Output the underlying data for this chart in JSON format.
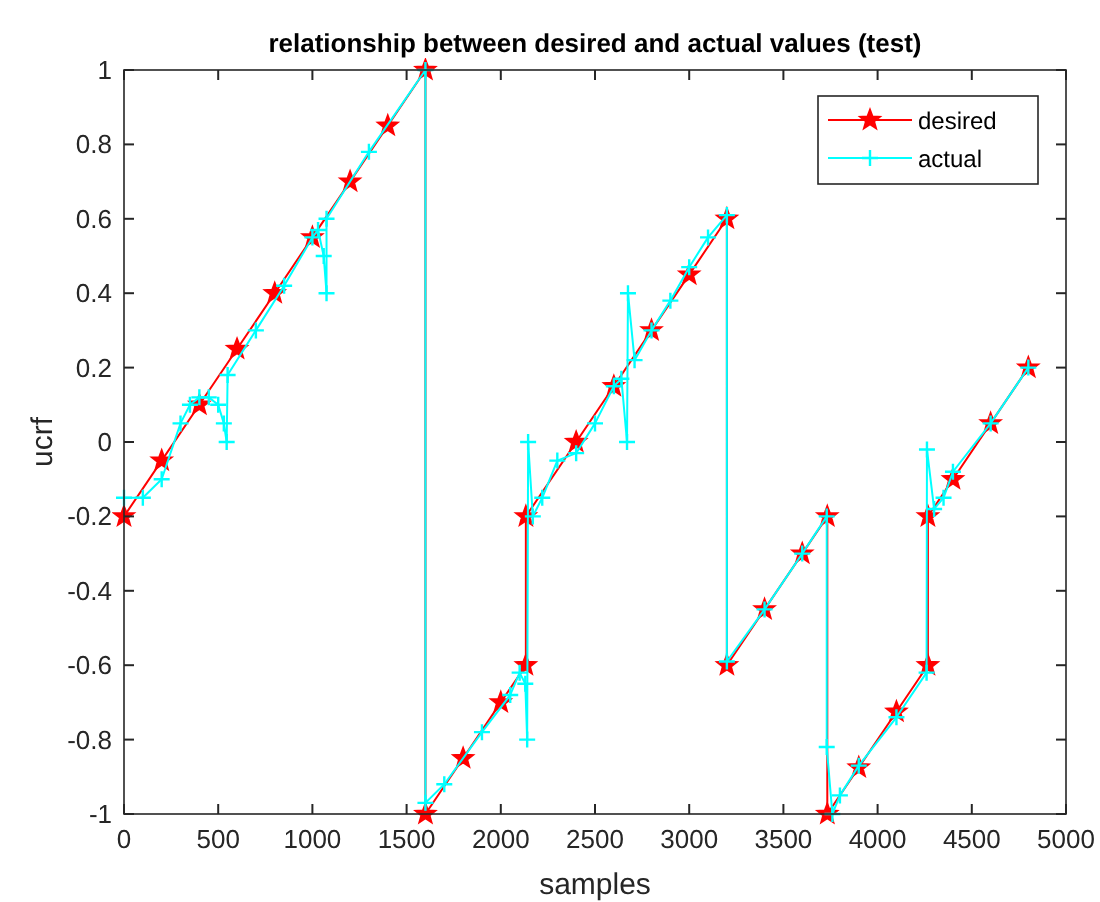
{
  "chart_data": {
    "type": "line",
    "title": "relationship between desired and actual values (test)",
    "xlabel": "samples",
    "ylabel": "ucrf",
    "xlim": [
      0,
      5000
    ],
    "xticks": [
      0,
      500,
      1000,
      1500,
      2000,
      2500,
      3000,
      3500,
      4000,
      4500,
      5000
    ],
    "ylim": [
      -1,
      1
    ],
    "yticks": [
      -1,
      -0.8,
      -0.6,
      -0.4,
      -0.2,
      0,
      0.2,
      0.4,
      0.6,
      0.8,
      1
    ],
    "grid": false,
    "legend": "top right",
    "series": [
      {
        "name": "desired",
        "color": "#ff0000",
        "marker": "star",
        "x": [
          0,
          200,
          400,
          600,
          800,
          1000,
          1200,
          1400,
          1600,
          1600,
          1800,
          2000,
          2133,
          2133,
          2400,
          2600,
          2800,
          3000,
          3200,
          3200,
          3400,
          3600,
          3733,
          3733,
          3900,
          4100,
          4267,
          4267,
          4400,
          4600,
          4800
        ],
        "values": [
          -0.2,
          -0.05,
          0.1,
          0.25,
          0.4,
          0.55,
          0.7,
          0.85,
          1,
          -1,
          -0.85,
          -0.7,
          -0.6,
          -0.2,
          0,
          0.15,
          0.3,
          0.45,
          0.6,
          -0.6,
          -0.45,
          -0.3,
          -0.2,
          -1,
          -0.875,
          -0.725,
          -0.6,
          -0.2,
          -0.1,
          0.05,
          0.2
        ]
      },
      {
        "name": "actual",
        "color": "#00ffff",
        "marker": "cross",
        "x": [
          0,
          100,
          200,
          300,
          350,
          400,
          450,
          500,
          530,
          545,
          550,
          700,
          850,
          1000,
          1030,
          1060,
          1075,
          1075,
          1300,
          1600,
          1600,
          1700,
          1900,
          2050,
          2100,
          2130,
          2140,
          2145,
          2170,
          2220,
          2300,
          2400,
          2500,
          2600,
          2640,
          2670,
          2675,
          2710,
          2800,
          2900,
          3000,
          3100,
          3200,
          3200,
          3400,
          3600,
          3730,
          3730,
          3760,
          3800,
          3900,
          4100,
          4260,
          4262,
          4300,
          4350,
          4400,
          4600,
          4800
        ],
        "values": [
          -0.15,
          -0.15,
          -0.1,
          0.05,
          0.1,
          0.12,
          0.12,
          0.1,
          0.05,
          0,
          0.18,
          0.3,
          0.42,
          0.55,
          0.57,
          0.5,
          0.4,
          0.6,
          0.78,
          1,
          -0.97,
          -0.92,
          -0.78,
          -0.68,
          -0.62,
          -0.65,
          -0.8,
          0,
          -0.2,
          -0.15,
          -0.05,
          -0.03,
          0.05,
          0.15,
          0.17,
          0,
          0.4,
          0.22,
          0.3,
          0.38,
          0.47,
          0.55,
          0.61,
          -0.59,
          -0.45,
          -0.3,
          -0.2,
          -0.82,
          -1,
          -0.95,
          -0.87,
          -0.74,
          -0.62,
          -0.02,
          -0.18,
          -0.15,
          -0.08,
          0.05,
          0.2
        ]
      }
    ]
  }
}
